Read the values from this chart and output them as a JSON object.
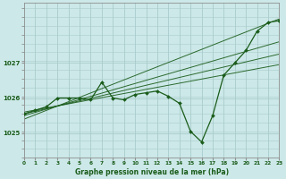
{
  "title": "Graphe pression niveau de la mer (hPa)",
  "bg_color": "#cce8e8",
  "grid_color": "#aacccc",
  "line_color": "#1a5c1a",
  "x_min": 0,
  "x_max": 23,
  "y_min": 1024.3,
  "y_max": 1028.7,
  "yticks": [
    1025,
    1026,
    1027
  ],
  "xticks": [
    0,
    1,
    2,
    3,
    4,
    5,
    6,
    7,
    8,
    9,
    10,
    11,
    12,
    13,
    14,
    15,
    16,
    17,
    18,
    19,
    20,
    21,
    22,
    23
  ],
  "main_series": [
    1025.55,
    1025.65,
    1025.75,
    1026.0,
    1026.0,
    1026.0,
    1025.95,
    1026.45,
    1026.0,
    1025.95,
    1026.1,
    1026.15,
    1026.2,
    1026.05,
    1025.85,
    1025.05,
    1024.75,
    1025.5,
    1026.65,
    1027.0,
    1027.35,
    1027.9,
    1028.15,
    1028.2
  ],
  "trend_lines": [
    {
      "x0": 0,
      "y0": 1025.4,
      "x1": 23,
      "y1": 1028.25
    },
    {
      "x0": 0,
      "y0": 1025.5,
      "x1": 23,
      "y1": 1027.6
    },
    {
      "x0": 0,
      "y0": 1025.55,
      "x1": 23,
      "y1": 1027.25
    },
    {
      "x0": 0,
      "y0": 1025.6,
      "x1": 23,
      "y1": 1026.95
    }
  ]
}
